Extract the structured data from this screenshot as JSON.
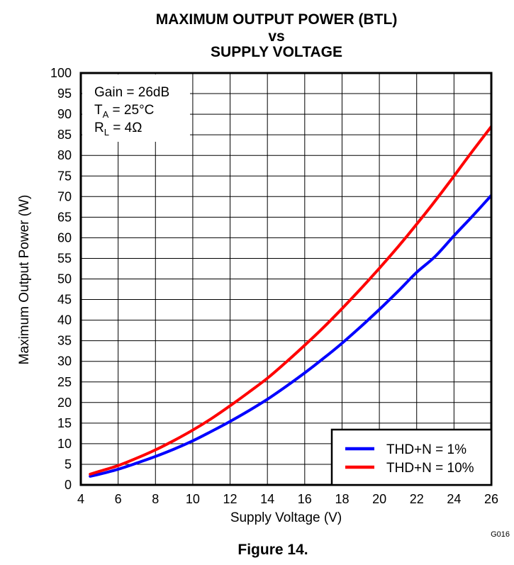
{
  "title_lines": [
    "MAXIMUM OUTPUT POWER (BTL)",
    "vs",
    "SUPPLY VOLTAGE"
  ],
  "figure_caption": "Figure 14.",
  "figure_code": "G016",
  "chart_data": {
    "type": "line",
    "title": "MAXIMUM OUTPUT POWER (BTL) vs SUPPLY VOLTAGE",
    "xlabel": "Supply Voltage (V)",
    "ylabel": "Maximum Output Power (W)",
    "xlim": [
      4,
      26
    ],
    "ylim": [
      0,
      100
    ],
    "xticks": [
      4,
      6,
      8,
      10,
      12,
      14,
      16,
      18,
      20,
      22,
      24,
      26
    ],
    "yticks": [
      0,
      5,
      10,
      15,
      20,
      25,
      30,
      35,
      40,
      45,
      50,
      55,
      60,
      65,
      70,
      75,
      80,
      85,
      90,
      95,
      100
    ],
    "grid": true,
    "legend_position": "bottom-right",
    "annotations": [
      {
        "text": "Gain = 26dB"
      },
      {
        "main": "T",
        "sub": "A",
        "rest": " = 25°C"
      },
      {
        "main": "R",
        "sub": "L",
        "rest": " = 4Ω"
      }
    ],
    "series": [
      {
        "name": "THD+N = 1%",
        "color": "#0000ff",
        "x": [
          4.5,
          5,
          6,
          7,
          8,
          9,
          10,
          11,
          12,
          13,
          14,
          15,
          16,
          17,
          18,
          19,
          20,
          21,
          22,
          23,
          24,
          25,
          26
        ],
        "y": [
          2.1,
          2.6,
          3.8,
          5.3,
          6.9,
          8.7,
          10.7,
          13,
          15.4,
          18,
          20.8,
          23.9,
          27.2,
          30.7,
          34.4,
          38.4,
          42.6,
          47,
          51.6,
          55.5,
          60.5,
          65.3,
          70.3
        ]
      },
      {
        "name": "THD+N = 10%",
        "color": "#ff0000",
        "x": [
          4.5,
          5,
          6,
          7,
          8,
          9,
          10,
          11,
          12,
          13,
          14,
          15,
          16,
          17,
          18,
          19,
          20,
          21,
          22,
          23,
          24,
          25,
          26
        ],
        "y": [
          2.6,
          3.3,
          4.7,
          6.5,
          8.5,
          10.8,
          13.3,
          16.1,
          19.2,
          22.5,
          25.9,
          29.8,
          33.9,
          38.2,
          42.8,
          47.6,
          52.6,
          57.8,
          63.3,
          69,
          75,
          81.1,
          87
        ]
      }
    ]
  }
}
